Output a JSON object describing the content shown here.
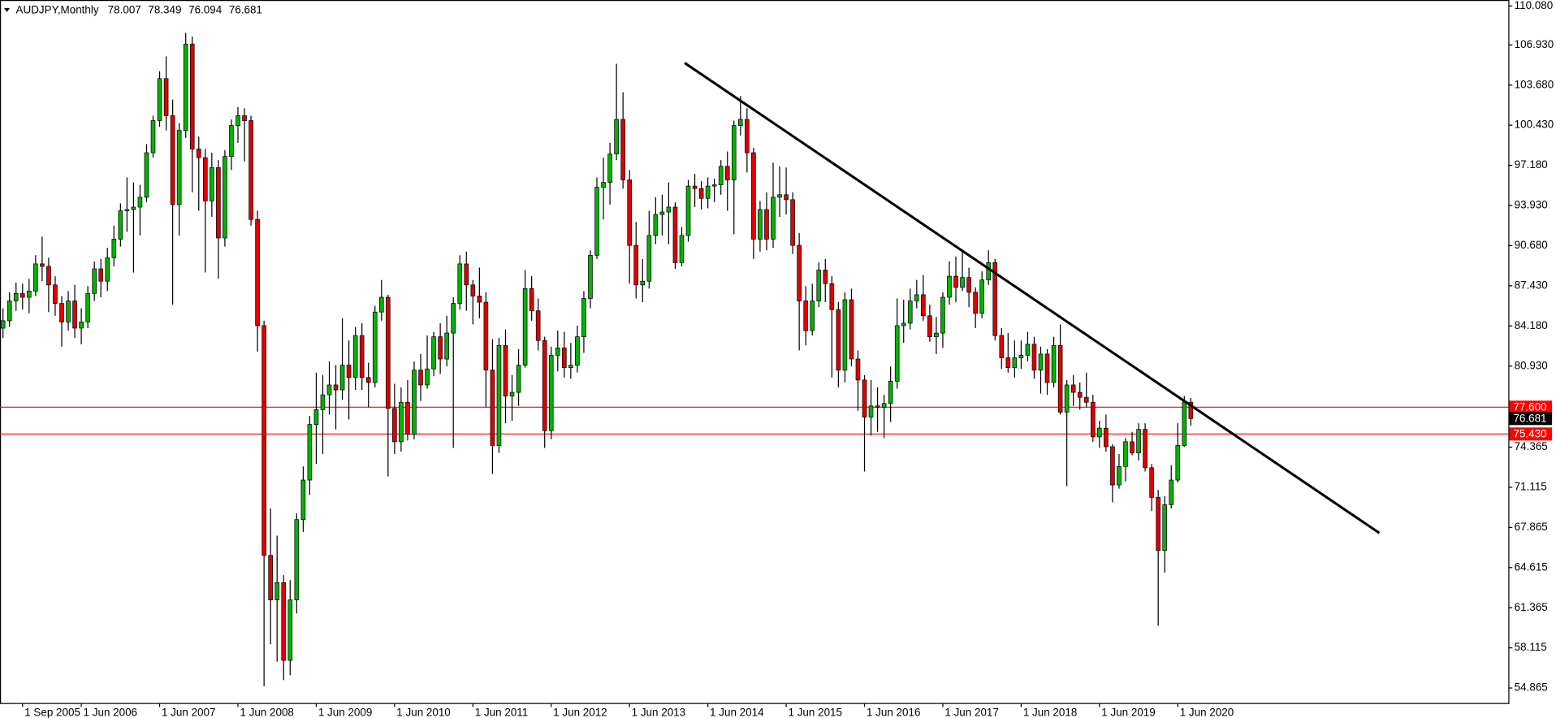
{
  "chart_data": {
    "type": "candlestick",
    "title": "AUDJPY,Monthly",
    "categories": [
      null,
      null,
      null,
      "1 Sep 2005",
      null,
      null,
      null,
      null,
      null,
      null,
      null,
      null,
      "1 Jun 2006",
      null,
      null,
      null,
      null,
      null,
      null,
      null,
      null,
      null,
      null,
      null,
      "1 Jun 2007",
      null,
      null,
      null,
      null,
      null,
      null,
      null,
      null,
      null,
      null,
      null,
      "1 Jun 2008",
      null,
      null,
      null,
      null,
      null,
      null,
      null,
      null,
      null,
      null,
      null,
      "1 Jun 2009",
      null,
      null,
      null,
      null,
      null,
      null,
      null,
      null,
      null,
      null,
      null,
      "1 Jun 2010",
      null,
      null,
      null,
      null,
      null,
      null,
      null,
      null,
      null,
      null,
      null,
      "1 Jun 2011",
      null,
      null,
      null,
      null,
      null,
      null,
      null,
      null,
      null,
      null,
      null,
      "1 Jun 2012",
      null,
      null,
      null,
      null,
      null,
      null,
      null,
      null,
      null,
      null,
      null,
      "1 Jun 2013",
      null,
      null,
      null,
      null,
      null,
      null,
      null,
      null,
      null,
      null,
      null,
      "1 Jun 2014",
      null,
      null,
      null,
      null,
      null,
      null,
      null,
      null,
      null,
      null,
      null,
      "1 Jun 2015",
      null,
      null,
      null,
      null,
      null,
      null,
      null,
      null,
      null,
      null,
      null,
      "1 Jun 2016",
      null,
      null,
      null,
      null,
      null,
      null,
      null,
      null,
      null,
      null,
      null,
      "1 Jun 2017",
      null,
      null,
      null,
      null,
      null,
      null,
      null,
      null,
      null,
      null,
      null,
      "1 Jun 2018",
      null,
      null,
      null,
      null,
      null,
      null,
      null,
      null,
      null,
      null,
      null,
      "1 Jun 2019",
      null,
      null,
      null,
      null,
      null,
      null,
      null,
      null,
      null,
      null,
      null,
      "1 Jun 2020",
      null,
      null
    ],
    "open": [
      84.0,
      84.6,
      86.2,
      86.8,
      86.5,
      87.0,
      89.2,
      89.0,
      87.5,
      86.0,
      84.5,
      86.2,
      84.0,
      84.5,
      86.8,
      88.8,
      87.8,
      89.7,
      91.2,
      93.5,
      93.6,
      93.8,
      94.6,
      98.2,
      100.8,
      104.2,
      101.2,
      94.0,
      100.0,
      107.0,
      98.5,
      97.8,
      94.3,
      97.0,
      91.3,
      97.9,
      100.4,
      101.2,
      100.8,
      92.8,
      84.2,
      65.6,
      62.0,
      63.4,
      57.1,
      62.0,
      68.5,
      71.7,
      76.2,
      77.4,
      78.6,
      79.4,
      79.0,
      81.0,
      80.0,
      83.4,
      80.0,
      79.6,
      85.3,
      86.5,
      77.5,
      74.8,
      78.0,
      75.4,
      80.6,
      79.4,
      80.7,
      83.3,
      81.5,
      83.6,
      86.0,
      89.2,
      87.5,
      86.6,
      86.1,
      80.6,
      74.5,
      82.6,
      78.5,
      78.8,
      81.0,
      87.2,
      85.4,
      83.0,
      75.7,
      81.8,
      82.4,
      80.8,
      81.0,
      83.3,
      86.4,
      89.9,
      95.4,
      95.8,
      98.1,
      100.9,
      96.0,
      90.7,
      87.5,
      87.8,
      91.5,
      93.2,
      93.4,
      93.8,
      89.3,
      91.5,
      95.5,
      95.3,
      94.5,
      95.5,
      95.6,
      97.1,
      96.0,
      100.4,
      100.9,
      98.2,
      91.2,
      93.6,
      91.2,
      94.6,
      94.8,
      94.4,
      90.7,
      86.2,
      83.8,
      86.2,
      88.7,
      87.6,
      85.5,
      80.6,
      86.3,
      81.5,
      79.8,
      76.8,
      77.7,
      77.6,
      77.9,
      79.7,
      84.2,
      84.4,
      86.2,
      86.7,
      85.0,
      83.3,
      83.6,
      86.5,
      88.2,
      87.3,
      88.1,
      86.9,
      85.2,
      87.9,
      89.3,
      83.4,
      81.6,
      80.8,
      81.6,
      81.8,
      82.7,
      80.6,
      81.9,
      79.6,
      82.6,
      77.2,
      79.4,
      78.8,
      78.4,
      78.0,
      75.2,
      75.9,
      74.4,
      71.3,
      72.8,
      74.8,
      73.9,
      75.8,
      72.7,
      70.3,
      66.0,
      69.7,
      71.7,
      74.5,
      78.007
    ],
    "high": [
      85.6,
      86.9,
      87.7,
      87.6,
      88.0,
      89.9,
      91.4,
      89.7,
      88.2,
      86.6,
      87.0,
      87.5,
      85.6,
      87.4,
      89.4,
      89.6,
      90.5,
      92.3,
      94.1,
      96.2,
      95.8,
      95.6,
      98.9,
      101.2,
      104.8,
      106.0,
      102.5,
      100.6,
      107.9,
      107.6,
      99.5,
      98.5,
      98.2,
      97.6,
      98.4,
      100.9,
      101.9,
      101.8,
      101.2,
      93.5,
      84.6,
      69.4,
      67.2,
      64.0,
      63.6,
      69.0,
      72.8,
      76.9,
      80.4,
      80.2,
      81.3,
      81.0,
      84.8,
      83.0,
      84.1,
      84.4,
      81.2,
      85.8,
      87.9,
      86.7,
      79.5,
      79.2,
      79.8,
      81.3,
      81.9,
      83.4,
      83.7,
      84.4,
      85.0,
      86.5,
      89.9,
      90.2,
      87.9,
      88.9,
      86.9,
      83.1,
      83.2,
      83.9,
      80.2,
      82.3,
      88.7,
      88.2,
      86.4,
      83.3,
      82.5,
      83.8,
      83.7,
      82.8,
      84.2,
      87.0,
      90.3,
      96.2,
      97.8,
      99.0,
      105.4,
      103.1,
      96.8,
      92.6,
      89.6,
      93.5,
      94.6,
      94.8,
      95.8,
      94.2,
      92.2,
      96.0,
      96.5,
      95.9,
      96.2,
      96.1,
      97.6,
      98.3,
      100.8,
      102.8,
      101.8,
      98.6,
      94.3,
      95.0,
      97.4,
      97.1,
      97.0,
      95.0,
      91.7,
      87.4,
      87.6,
      89.3,
      89.6,
      88.2,
      86.1,
      86.9,
      87.2,
      82.2,
      80.2,
      79.8,
      79.2,
      78.6,
      80.9,
      86.4,
      86.3,
      87.2,
      87.9,
      88.3,
      85.9,
      84.9,
      86.9,
      89.4,
      89.8,
      90.3,
      88.9,
      87.3,
      88.6,
      90.3,
      89.6,
      84.0,
      83.6,
      83.0,
      83.0,
      83.7,
      83.3,
      82.5,
      82.3,
      83.3,
      84.3,
      79.8,
      80.2,
      79.6,
      80.4,
      78.6,
      76.5,
      77.0,
      74.6,
      73.8,
      75.1,
      75.6,
      76.3,
      76.3,
      73.0,
      70.9,
      70.4,
      72.9,
      76.3,
      78.5,
      78.349
    ],
    "low": [
      83.2,
      84.1,
      85.4,
      85.5,
      85.2,
      86.6,
      87.8,
      85.3,
      85.0,
      82.5,
      83.8,
      83.2,
      82.7,
      84.0,
      86.2,
      86.5,
      87.0,
      89.0,
      90.6,
      91.8,
      88.5,
      91.5,
      94.2,
      97.8,
      100.3,
      100.0,
      85.9,
      91.5,
      99.4,
      95.0,
      93.5,
      88.5,
      93.0,
      88.0,
      90.6,
      96.8,
      99.0,
      97.5,
      92.3,
      82.1,
      55.0,
      58.4,
      57.0,
      55.5,
      55.9,
      60.9,
      67.5,
      70.5,
      73.0,
      73.8,
      77.0,
      75.8,
      78.2,
      76.6,
      79.0,
      79.0,
      77.6,
      79.2,
      84.6,
      72.0,
      73.8,
      74.0,
      74.9,
      75.0,
      78.1,
      79.1,
      80.1,
      80.3,
      80.9,
      74.3,
      85.5,
      85.4,
      84.3,
      84.8,
      77.6,
      72.2,
      73.9,
      76.3,
      76.5,
      77.7,
      80.8,
      84.6,
      82.2,
      74.3,
      75.0,
      80.5,
      80.0,
      79.9,
      80.4,
      82.0,
      85.6,
      89.6,
      92.8,
      94.0,
      97.6,
      95.3,
      87.6,
      86.4,
      86.1,
      87.2,
      90.8,
      91.5,
      90.8,
      88.8,
      89.0,
      91.0,
      93.8,
      93.6,
      93.7,
      94.2,
      94.8,
      93.5,
      91.6,
      99.6,
      96.6,
      89.6,
      90.2,
      90.3,
      90.5,
      93.0,
      93.2,
      90.0,
      82.2,
      82.6,
      83.4,
      85.7,
      86.1,
      80.0,
      79.2,
      79.6,
      80.9,
      77.3,
      72.4,
      75.3,
      75.6,
      75.1,
      76.4,
      79.1,
      82.8,
      83.9,
      85.6,
      84.6,
      82.9,
      81.9,
      82.4,
      85.9,
      86.1,
      87.0,
      85.7,
      84.0,
      84.8,
      87.5,
      83.0,
      80.7,
      80.4,
      80.0,
      80.7,
      81.3,
      79.9,
      78.7,
      78.6,
      79.2,
      77.0,
      71.2,
      77.7,
      77.4,
      77.6,
      74.8,
      74.3,
      74.0,
      69.9,
      71.0,
      71.6,
      73.7,
      73.3,
      72.4,
      69.2,
      59.9,
      64.2,
      69.4,
      71.5,
      74.4,
      76.094
    ],
    "close": [
      84.6,
      86.2,
      86.8,
      86.5,
      87.0,
      89.2,
      89.0,
      87.5,
      86.0,
      84.5,
      86.2,
      84.0,
      84.5,
      86.8,
      88.8,
      87.8,
      89.7,
      91.2,
      93.5,
      93.6,
      93.8,
      94.6,
      98.2,
      100.8,
      104.2,
      101.2,
      94.0,
      100.0,
      107.0,
      98.5,
      97.8,
      94.3,
      97.0,
      91.3,
      97.9,
      100.4,
      101.2,
      100.8,
      92.8,
      84.2,
      65.6,
      62.0,
      63.4,
      57.1,
      62.0,
      68.5,
      71.7,
      76.2,
      77.4,
      78.6,
      79.4,
      79.0,
      81.0,
      80.0,
      83.4,
      80.0,
      79.6,
      85.3,
      86.5,
      77.5,
      74.8,
      78.0,
      75.4,
      80.6,
      79.4,
      80.7,
      83.3,
      81.5,
      83.6,
      86.0,
      89.2,
      87.5,
      86.6,
      86.1,
      80.6,
      74.5,
      82.6,
      78.5,
      78.8,
      81.0,
      87.2,
      85.4,
      83.0,
      75.7,
      81.8,
      82.4,
      80.8,
      81.0,
      83.3,
      86.4,
      89.9,
      95.4,
      95.8,
      98.1,
      100.9,
      96.0,
      90.7,
      87.5,
      87.8,
      91.5,
      93.2,
      93.4,
      93.8,
      89.3,
      91.5,
      95.5,
      95.3,
      94.5,
      95.5,
      95.6,
      97.1,
      96.0,
      100.4,
      100.9,
      98.2,
      91.2,
      93.6,
      91.2,
      94.6,
      94.8,
      94.4,
      90.7,
      86.2,
      83.8,
      86.2,
      88.7,
      87.6,
      85.5,
      80.6,
      86.3,
      81.5,
      79.8,
      76.8,
      77.7,
      77.6,
      77.9,
      79.7,
      84.2,
      84.4,
      86.2,
      86.7,
      85.0,
      83.3,
      83.6,
      86.5,
      88.2,
      87.3,
      88.1,
      86.9,
      85.2,
      87.9,
      89.3,
      83.4,
      81.6,
      80.8,
      81.6,
      81.8,
      82.7,
      80.6,
      81.9,
      79.6,
      82.6,
      77.2,
      79.4,
      78.8,
      78.4,
      78.0,
      75.2,
      75.9,
      74.4,
      71.3,
      72.8,
      74.8,
      73.9,
      75.8,
      72.7,
      70.3,
      66.0,
      69.7,
      71.7,
      74.5,
      78.007,
      76.681
    ],
    "up_color": "#00b400",
    "down_color": "#e00000",
    "ylim": [
      53.65,
      110.566
    ],
    "yticks": [
      {
        "value": 110.08,
        "label": "110.080"
      },
      {
        "value": 106.93,
        "label": "106.930"
      },
      {
        "value": 103.68,
        "label": "103.680"
      },
      {
        "value": 100.43,
        "label": "100.430"
      },
      {
        "value": 97.18,
        "label": "97.180"
      },
      {
        "value": 93.93,
        "label": "93.930"
      },
      {
        "value": 90.68,
        "label": "90.680"
      },
      {
        "value": 87.43,
        "label": "87.430"
      },
      {
        "value": 84.18,
        "label": "84.180"
      },
      {
        "value": 80.93,
        "label": "80.930"
      },
      74.365,
      71.115,
      67.865,
      64.615,
      61.365,
      58.115,
      54.865
    ],
    "levels": [
      {
        "value": 77.6,
        "label": "77.600"
      },
      {
        "value": 75.43,
        "label": "75.430"
      }
    ],
    "level_color": "#ff0000"
  }
}
